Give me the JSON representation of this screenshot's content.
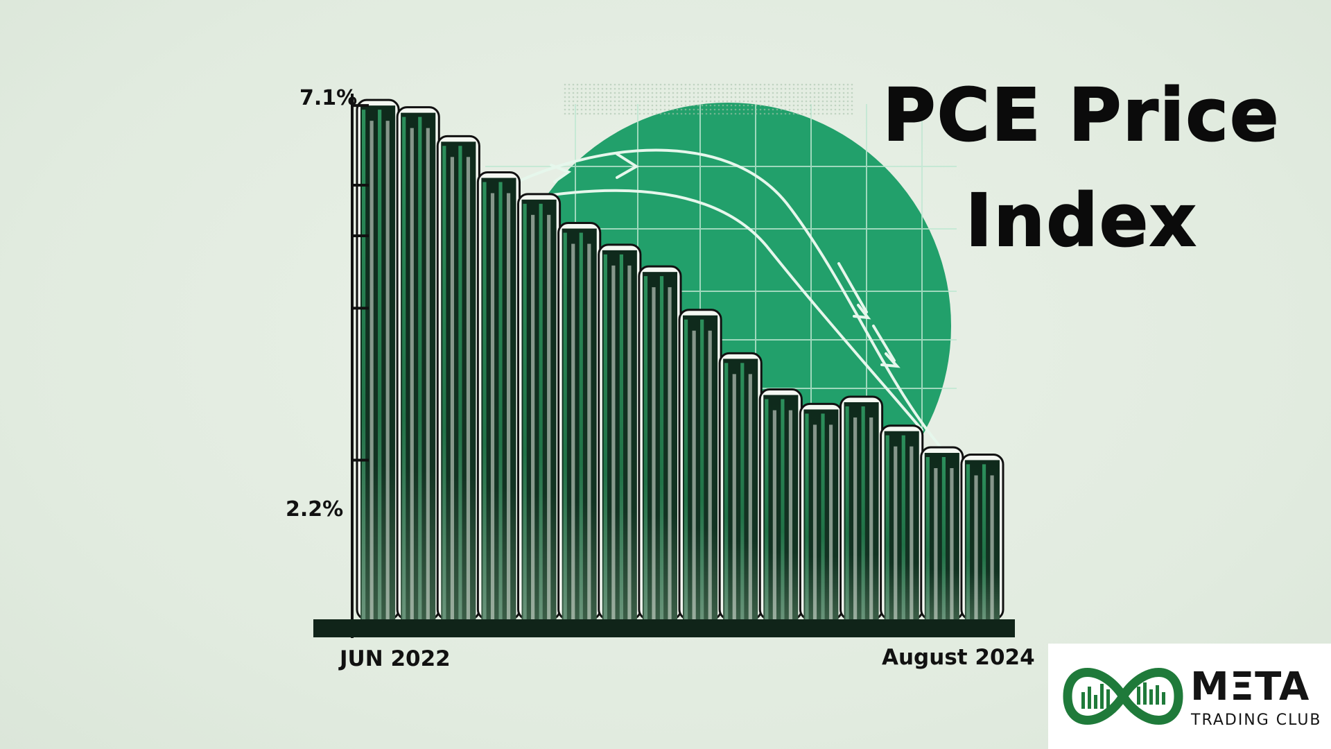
{
  "title_lines": [
    "PCE Price",
    "Index"
  ],
  "chart_data": {
    "type": "bar",
    "title": "PCE Price Index",
    "start_label": "JUN 2022",
    "end_label": "August 2024",
    "y_tick_labels": [
      "7.1%",
      "2.2%"
    ],
    "y_ticks": [
      7.1,
      2.2
    ],
    "ylim": [
      0,
      7.6
    ],
    "values": [
      7.1,
      7.0,
      6.6,
      6.1,
      5.8,
      5.4,
      5.1,
      4.8,
      4.2,
      3.6,
      3.1,
      2.9,
      3.0,
      2.6,
      2.3,
      2.2
    ],
    "grid": false,
    "legend": "none"
  },
  "colors": {
    "background": "#e4ede2",
    "bar_dark": "#0f2a1c",
    "bar_green": "#2e8b57",
    "accent_circle": "#22a06b",
    "axis": "#111111",
    "logo_green": "#1f7a3a"
  },
  "logo": {
    "brand": "MΞTA",
    "sub": "TRADING CLUB",
    "icon": "infinity-chart-icon"
  }
}
